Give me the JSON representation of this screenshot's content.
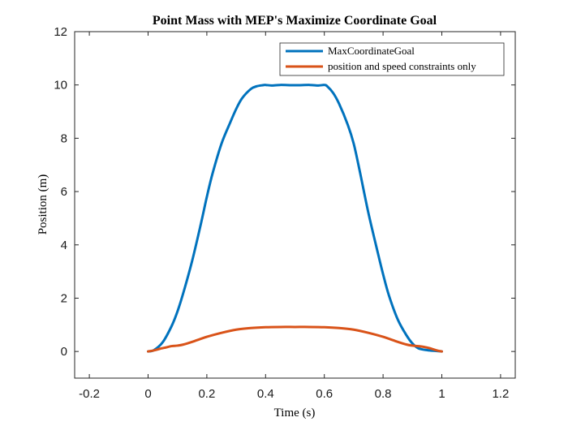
{
  "chart_data": {
    "type": "line",
    "title": "Point Mass with MEP's Maximize Coordinate Goal",
    "xlabel": "Time (s)",
    "ylabel": "Position (m)",
    "xlim": [
      -0.25,
      1.25
    ],
    "ylim": [
      -1,
      12
    ],
    "xticks": [
      -0.2,
      0,
      0.2,
      0.4,
      0.6,
      0.8,
      1,
      1.2
    ],
    "xtick_labels": [
      "-0.2",
      "0",
      "0.2",
      "0.4",
      "0.6",
      "0.8",
      "1",
      "1.2"
    ],
    "yticks": [
      0,
      2,
      4,
      6,
      8,
      10,
      12
    ],
    "ytick_labels": [
      "0",
      "2",
      "4",
      "6",
      "8",
      "10",
      "12"
    ],
    "grid": false,
    "legend_position": "top-right",
    "series": [
      {
        "name": "MaxCoordinateGoal",
        "color": "#0072BD",
        "x": [
          0,
          0.02,
          0.05,
          0.08,
          0.1,
          0.12,
          0.15,
          0.18,
          0.2,
          0.22,
          0.25,
          0.28,
          0.3,
          0.32,
          0.35,
          0.37,
          0.39,
          0.4,
          0.42,
          0.45,
          0.5,
          0.55,
          0.58,
          0.6,
          0.61,
          0.63,
          0.65,
          0.68,
          0.7,
          0.72,
          0.75,
          0.78,
          0.8,
          0.82,
          0.85,
          0.88,
          0.9,
          0.92,
          0.95,
          0.98,
          1.0
        ],
        "y": [
          0,
          0.05,
          0.35,
          0.95,
          1.5,
          2.2,
          3.4,
          4.8,
          5.8,
          6.7,
          7.8,
          8.6,
          9.1,
          9.5,
          9.85,
          9.95,
          9.99,
          10.0,
          9.98,
          10.0,
          9.99,
          10.0,
          9.98,
          10.0,
          9.95,
          9.7,
          9.3,
          8.5,
          7.8,
          6.8,
          5.2,
          3.8,
          2.9,
          2.1,
          1.2,
          0.6,
          0.3,
          0.12,
          0.05,
          0.02,
          0
        ]
      },
      {
        "name": "position and speed constraints only",
        "color": "#D95319",
        "x": [
          0,
          0.02,
          0.04,
          0.06,
          0.08,
          0.1,
          0.12,
          0.15,
          0.2,
          0.25,
          0.3,
          0.35,
          0.4,
          0.45,
          0.5,
          0.55,
          0.6,
          0.65,
          0.7,
          0.75,
          0.8,
          0.85,
          0.88,
          0.9,
          0.92,
          0.94,
          0.96,
          0.98,
          1.0
        ],
        "y": [
          0,
          0.04,
          0.1,
          0.15,
          0.2,
          0.22,
          0.26,
          0.36,
          0.55,
          0.7,
          0.82,
          0.88,
          0.91,
          0.92,
          0.92,
          0.92,
          0.91,
          0.88,
          0.82,
          0.7,
          0.55,
          0.36,
          0.26,
          0.22,
          0.2,
          0.17,
          0.12,
          0.05,
          0
        ]
      }
    ]
  }
}
